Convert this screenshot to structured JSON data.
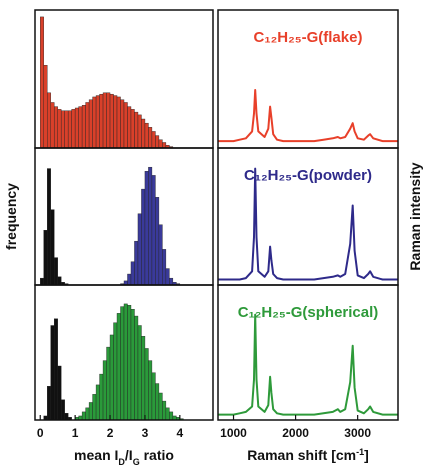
{
  "chart_data": [
    {
      "type": "histogram",
      "xlim": [
        -0.15,
        4.95
      ],
      "ylim": [
        0,
        100
      ],
      "bins": [
        0,
        0.1,
        0.2,
        0.3,
        0.4,
        0.5,
        0.6,
        0.7,
        0.8,
        0.9,
        1,
        1.1,
        1.2,
        1.3,
        1.4,
        1.5,
        1.6,
        1.7,
        1.8,
        1.9,
        2,
        2.1,
        2.2,
        2.3,
        2.4,
        2.5,
        2.6,
        2.7,
        2.8,
        2.9,
        3,
        3.1,
        3.2,
        3.3,
        3.4,
        3.5,
        3.6,
        3.7,
        3.8,
        3.9,
        4,
        4.1,
        4.2,
        4.3,
        4.4
      ],
      "series": [
        {
          "color": "#d9402a",
          "values": [
            95,
            60,
            40,
            33,
            30,
            28,
            27,
            27,
            27,
            28,
            29,
            30,
            31,
            33,
            35,
            37,
            38,
            39,
            40,
            40,
            39,
            38,
            37,
            35,
            33,
            30,
            28,
            26,
            24,
            21,
            18,
            15,
            12,
            9,
            6,
            4,
            2,
            1,
            0,
            0,
            0,
            0,
            0,
            0
          ]
        }
      ]
    },
    {
      "type": "line",
      "title": "C₁₂H₂₅-G(flake)",
      "color": "#e8402a",
      "xlim": [
        750,
        3650
      ],
      "ylim": [
        0,
        100
      ],
      "x": [
        750,
        1000,
        1100,
        1200,
        1300,
        1330,
        1350,
        1370,
        1400,
        1500,
        1560,
        1590,
        1610,
        1640,
        1700,
        1800,
        2000,
        2300,
        2450,
        2600,
        2680,
        2720,
        2800,
        2880,
        2920,
        2950,
        3000,
        3100,
        3170,
        3200,
        3250,
        3400,
        3650
      ],
      "values": [
        5,
        5,
        6,
        7,
        12,
        25,
        42,
        25,
        12,
        8,
        14,
        30,
        22,
        10,
        6,
        5,
        5,
        5,
        6,
        7,
        8,
        7,
        8,
        14,
        18,
        12,
        7,
        6,
        9,
        10,
        7,
        5,
        5
      ]
    },
    {
      "type": "histogram",
      "ylabel": "frequency",
      "xlim": [
        -0.15,
        4.95
      ],
      "ylim": [
        0,
        100
      ],
      "bins": [
        0,
        0.1,
        0.2,
        0.3,
        0.4,
        0.5,
        0.6,
        0.7,
        0.8,
        0.9,
        1,
        1.1,
        1.2,
        1.3,
        1.4,
        1.5,
        1.6,
        1.7,
        1.8,
        1.9,
        2,
        2.1,
        2.2,
        2.3,
        2.4,
        2.5,
        2.6,
        2.7,
        2.8,
        2.9,
        3,
        3.1,
        3.2,
        3.3,
        3.4,
        3.5,
        3.6,
        3.7,
        3.8,
        3.9,
        4,
        4.1,
        4.2,
        4.3,
        4.4
      ],
      "series": [
        {
          "color": "#111111",
          "values": [
            5,
            40,
            85,
            55,
            20,
            6,
            2,
            1,
            0,
            0,
            0,
            0,
            0,
            0,
            0,
            0,
            0,
            0,
            0,
            0,
            0,
            0,
            0,
            0,
            0,
            0,
            0,
            0,
            0,
            0,
            0,
            0,
            0,
            0,
            0,
            0,
            0,
            0,
            0,
            0,
            0,
            0,
            0,
            0
          ]
        },
        {
          "color": "#3a3a9a",
          "values": [
            0,
            0,
            0,
            0,
            0,
            0,
            0,
            0,
            0,
            0,
            0,
            0,
            0,
            0,
            0,
            0,
            0,
            0,
            0,
            0,
            0,
            0,
            0,
            1,
            3,
            8,
            17,
            32,
            52,
            70,
            83,
            86,
            80,
            64,
            44,
            26,
            12,
            5,
            2,
            1,
            0,
            0,
            0,
            0
          ]
        }
      ]
    },
    {
      "type": "line",
      "title": "C₁₂H₂₅-G(powder)",
      "ylabel": "Raman intensity",
      "color": "#2e2a8a",
      "xlim": [
        750,
        3650
      ],
      "ylim": [
        0,
        100
      ],
      "x": [
        750,
        1000,
        1100,
        1200,
        1300,
        1330,
        1350,
        1370,
        1400,
        1500,
        1560,
        1590,
        1610,
        1640,
        1700,
        1800,
        2000,
        2300,
        2450,
        2600,
        2680,
        2720,
        2800,
        2880,
        2920,
        2950,
        3000,
        3100,
        3170,
        3200,
        3250,
        3400,
        3650
      ],
      "values": [
        4,
        4,
        4,
        5,
        10,
        35,
        85,
        35,
        10,
        6,
        10,
        28,
        18,
        8,
        5,
        4,
        4,
        4,
        5,
        6,
        7,
        6,
        8,
        30,
        58,
        25,
        7,
        5,
        8,
        10,
        6,
        4,
        4
      ]
    },
    {
      "type": "histogram",
      "xlabel": [
        "mean I",
        "D",
        "/I",
        "G",
        " ratio"
      ],
      "xlim": [
        -0.15,
        4.95
      ],
      "ylim": [
        0,
        100
      ],
      "xticks": [
        0,
        1,
        2,
        3,
        4
      ],
      "bins": [
        0,
        0.1,
        0.2,
        0.3,
        0.4,
        0.5,
        0.6,
        0.7,
        0.8,
        0.9,
        1,
        1.1,
        1.2,
        1.3,
        1.4,
        1.5,
        1.6,
        1.7,
        1.8,
        1.9,
        2,
        2.1,
        2.2,
        2.3,
        2.4,
        2.5,
        2.6,
        2.7,
        2.8,
        2.9,
        3,
        3.1,
        3.2,
        3.3,
        3.4,
        3.5,
        3.6,
        3.7,
        3.8,
        3.9,
        4,
        4.1,
        4.2,
        4.3,
        4.4
      ],
      "series": [
        {
          "color": "#111111",
          "values": [
            0,
            3,
            25,
            70,
            75,
            40,
            15,
            5,
            2,
            0,
            0,
            0,
            0,
            0,
            0,
            0,
            0,
            0,
            0,
            0,
            0,
            0,
            0,
            0,
            0,
            0,
            0,
            0,
            0,
            0,
            0,
            0,
            0,
            0,
            0,
            0,
            0,
            0,
            0,
            0,
            0,
            0,
            0,
            0
          ]
        },
        {
          "color": "#2a9a3a",
          "values": [
            0,
            0,
            0,
            0,
            0,
            0,
            0,
            0,
            0,
            0,
            2,
            3,
            6,
            9,
            13,
            19,
            26,
            34,
            44,
            54,
            63,
            72,
            79,
            84,
            86,
            85,
            82,
            77,
            70,
            62,
            53,
            44,
            35,
            27,
            20,
            14,
            9,
            6,
            3,
            2,
            1,
            0,
            0,
            0
          ]
        }
      ]
    },
    {
      "type": "line",
      "title": "C₁₂H₂₅-G(spherical)",
      "xlabel": [
        "Raman shift [cm",
        "-1",
        "]"
      ],
      "color": "#2e9a3a",
      "xlim": [
        750,
        3650
      ],
      "ylim": [
        0,
        100
      ],
      "xticks": [
        1000,
        2000,
        3000
      ],
      "x": [
        750,
        1000,
        1100,
        1200,
        1300,
        1330,
        1350,
        1370,
        1400,
        1500,
        1560,
        1590,
        1610,
        1640,
        1700,
        1800,
        2000,
        2300,
        2450,
        2600,
        2680,
        2720,
        2800,
        2880,
        2920,
        2950,
        3000,
        3100,
        3170,
        3200,
        3250,
        3400,
        3650
      ],
      "values": [
        4,
        4,
        5,
        6,
        10,
        30,
        78,
        30,
        10,
        6,
        11,
        32,
        20,
        8,
        5,
        4,
        4,
        4,
        5,
        6,
        8,
        6,
        8,
        28,
        55,
        24,
        7,
        5,
        8,
        10,
        6,
        4,
        4
      ]
    }
  ]
}
